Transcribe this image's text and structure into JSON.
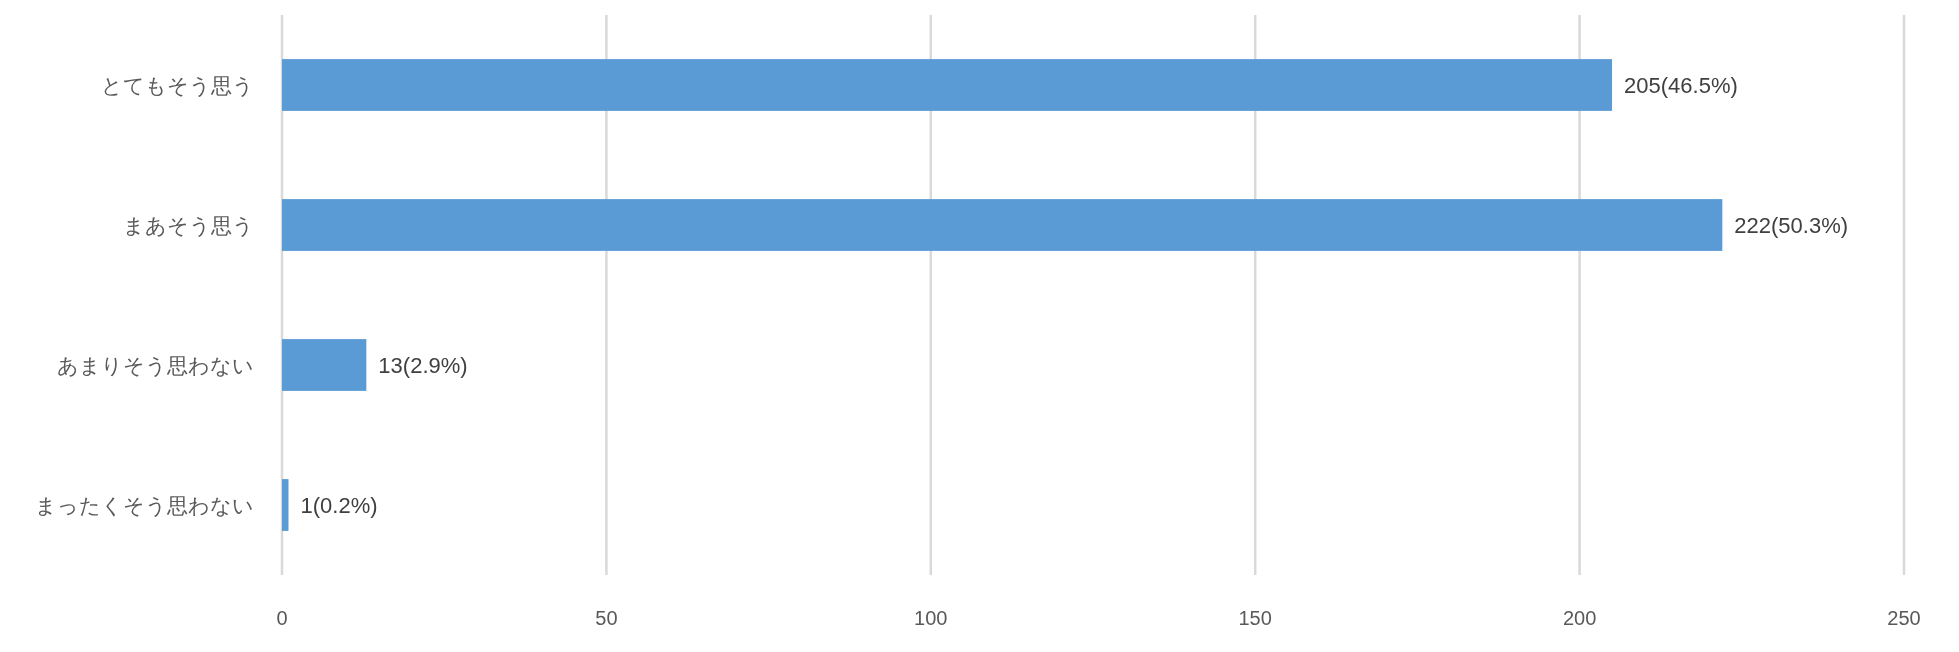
{
  "chart_data": {
    "type": "bar",
    "orientation": "horizontal",
    "categories": [
      "とてもそう思う",
      "まあそう思う",
      "あまりそう思わない",
      "まったくそう思わない"
    ],
    "values": [
      205,
      222,
      13,
      1
    ],
    "value_labels": [
      "205(46.5%)",
      "222(50.3%)",
      "13(2.9%)",
      "1(0.2%)"
    ],
    "color": "#5b9bd5",
    "xlim": [
      0,
      250
    ],
    "xticks": [
      0,
      50,
      100,
      150,
      200,
      250
    ],
    "grid": "x"
  }
}
